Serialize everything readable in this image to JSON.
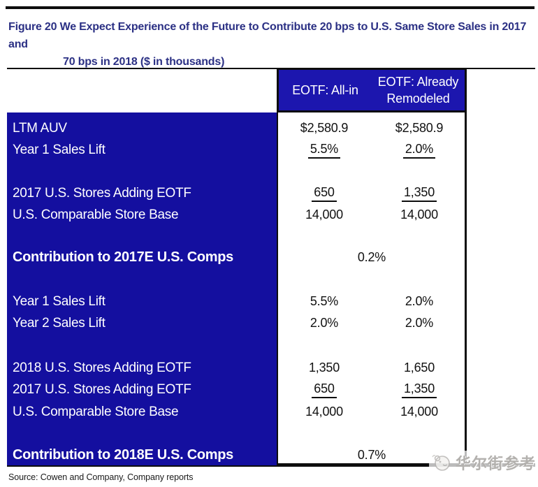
{
  "figure_title": {
    "line1": "Figure 20 We Expect Experience of the Future to Contribute 20 bps to U.S. Same Store Sales in 2017 and",
    "line2": "70 bps in 2018 ($ in thousands)"
  },
  "table": {
    "column_headers": [
      "EOTF: All-in",
      "EOTF: Already Remodeled"
    ],
    "rows": [
      {
        "kind": "data",
        "label": "LTM AUV",
        "values": [
          "$2,580.9",
          "$2,580.9"
        ],
        "underline": false
      },
      {
        "kind": "data",
        "label": "Year 1 Sales Lift",
        "values": [
          "5.5%",
          "2.0%"
        ],
        "underline": true
      },
      {
        "kind": "data",
        "label": "2017 U.S. Stores Adding EOTF",
        "values": [
          "650",
          "1,350"
        ],
        "underline": true
      },
      {
        "kind": "data",
        "label": "U.S. Comparable Store Base",
        "values": [
          "14,000",
          "14,000"
        ],
        "underline": false
      },
      {
        "kind": "total",
        "label": "Contribution to 2017E U.S. Comps",
        "value": "0.2%"
      },
      {
        "kind": "data",
        "label": "Year 1 Sales Lift",
        "values": [
          "5.5%",
          "2.0%"
        ],
        "underline": false
      },
      {
        "kind": "data",
        "label": "Year 2 Sales Lift",
        "values": [
          "2.0%",
          "2.0%"
        ],
        "underline": false
      },
      {
        "kind": "data",
        "label": "2018 U.S. Stores Adding EOTF",
        "values": [
          "1,350",
          "1,650"
        ],
        "underline": false
      },
      {
        "kind": "data",
        "label": "2017 U.S. Stores Adding EOTF",
        "values": [
          "650",
          "1,350"
        ],
        "underline": true
      },
      {
        "kind": "data",
        "label": "U.S. Comparable Store Base",
        "values": [
          "14,000",
          "14,000"
        ],
        "underline": false
      },
      {
        "kind": "total",
        "label": "Contribution to 2018E U.S. Comps",
        "value": "0.7%"
      }
    ]
  },
  "source_note": "Source: Cowen and Company, Company reports",
  "watermark": {
    "text": "华尔街参考"
  },
  "colors": {
    "header_blue": "#1c16ae",
    "body_blue": "#140f9f",
    "title_navy": "#2b3084",
    "rule_black": "#0d0d0d",
    "watermark_gray": "#b3b1ae"
  }
}
